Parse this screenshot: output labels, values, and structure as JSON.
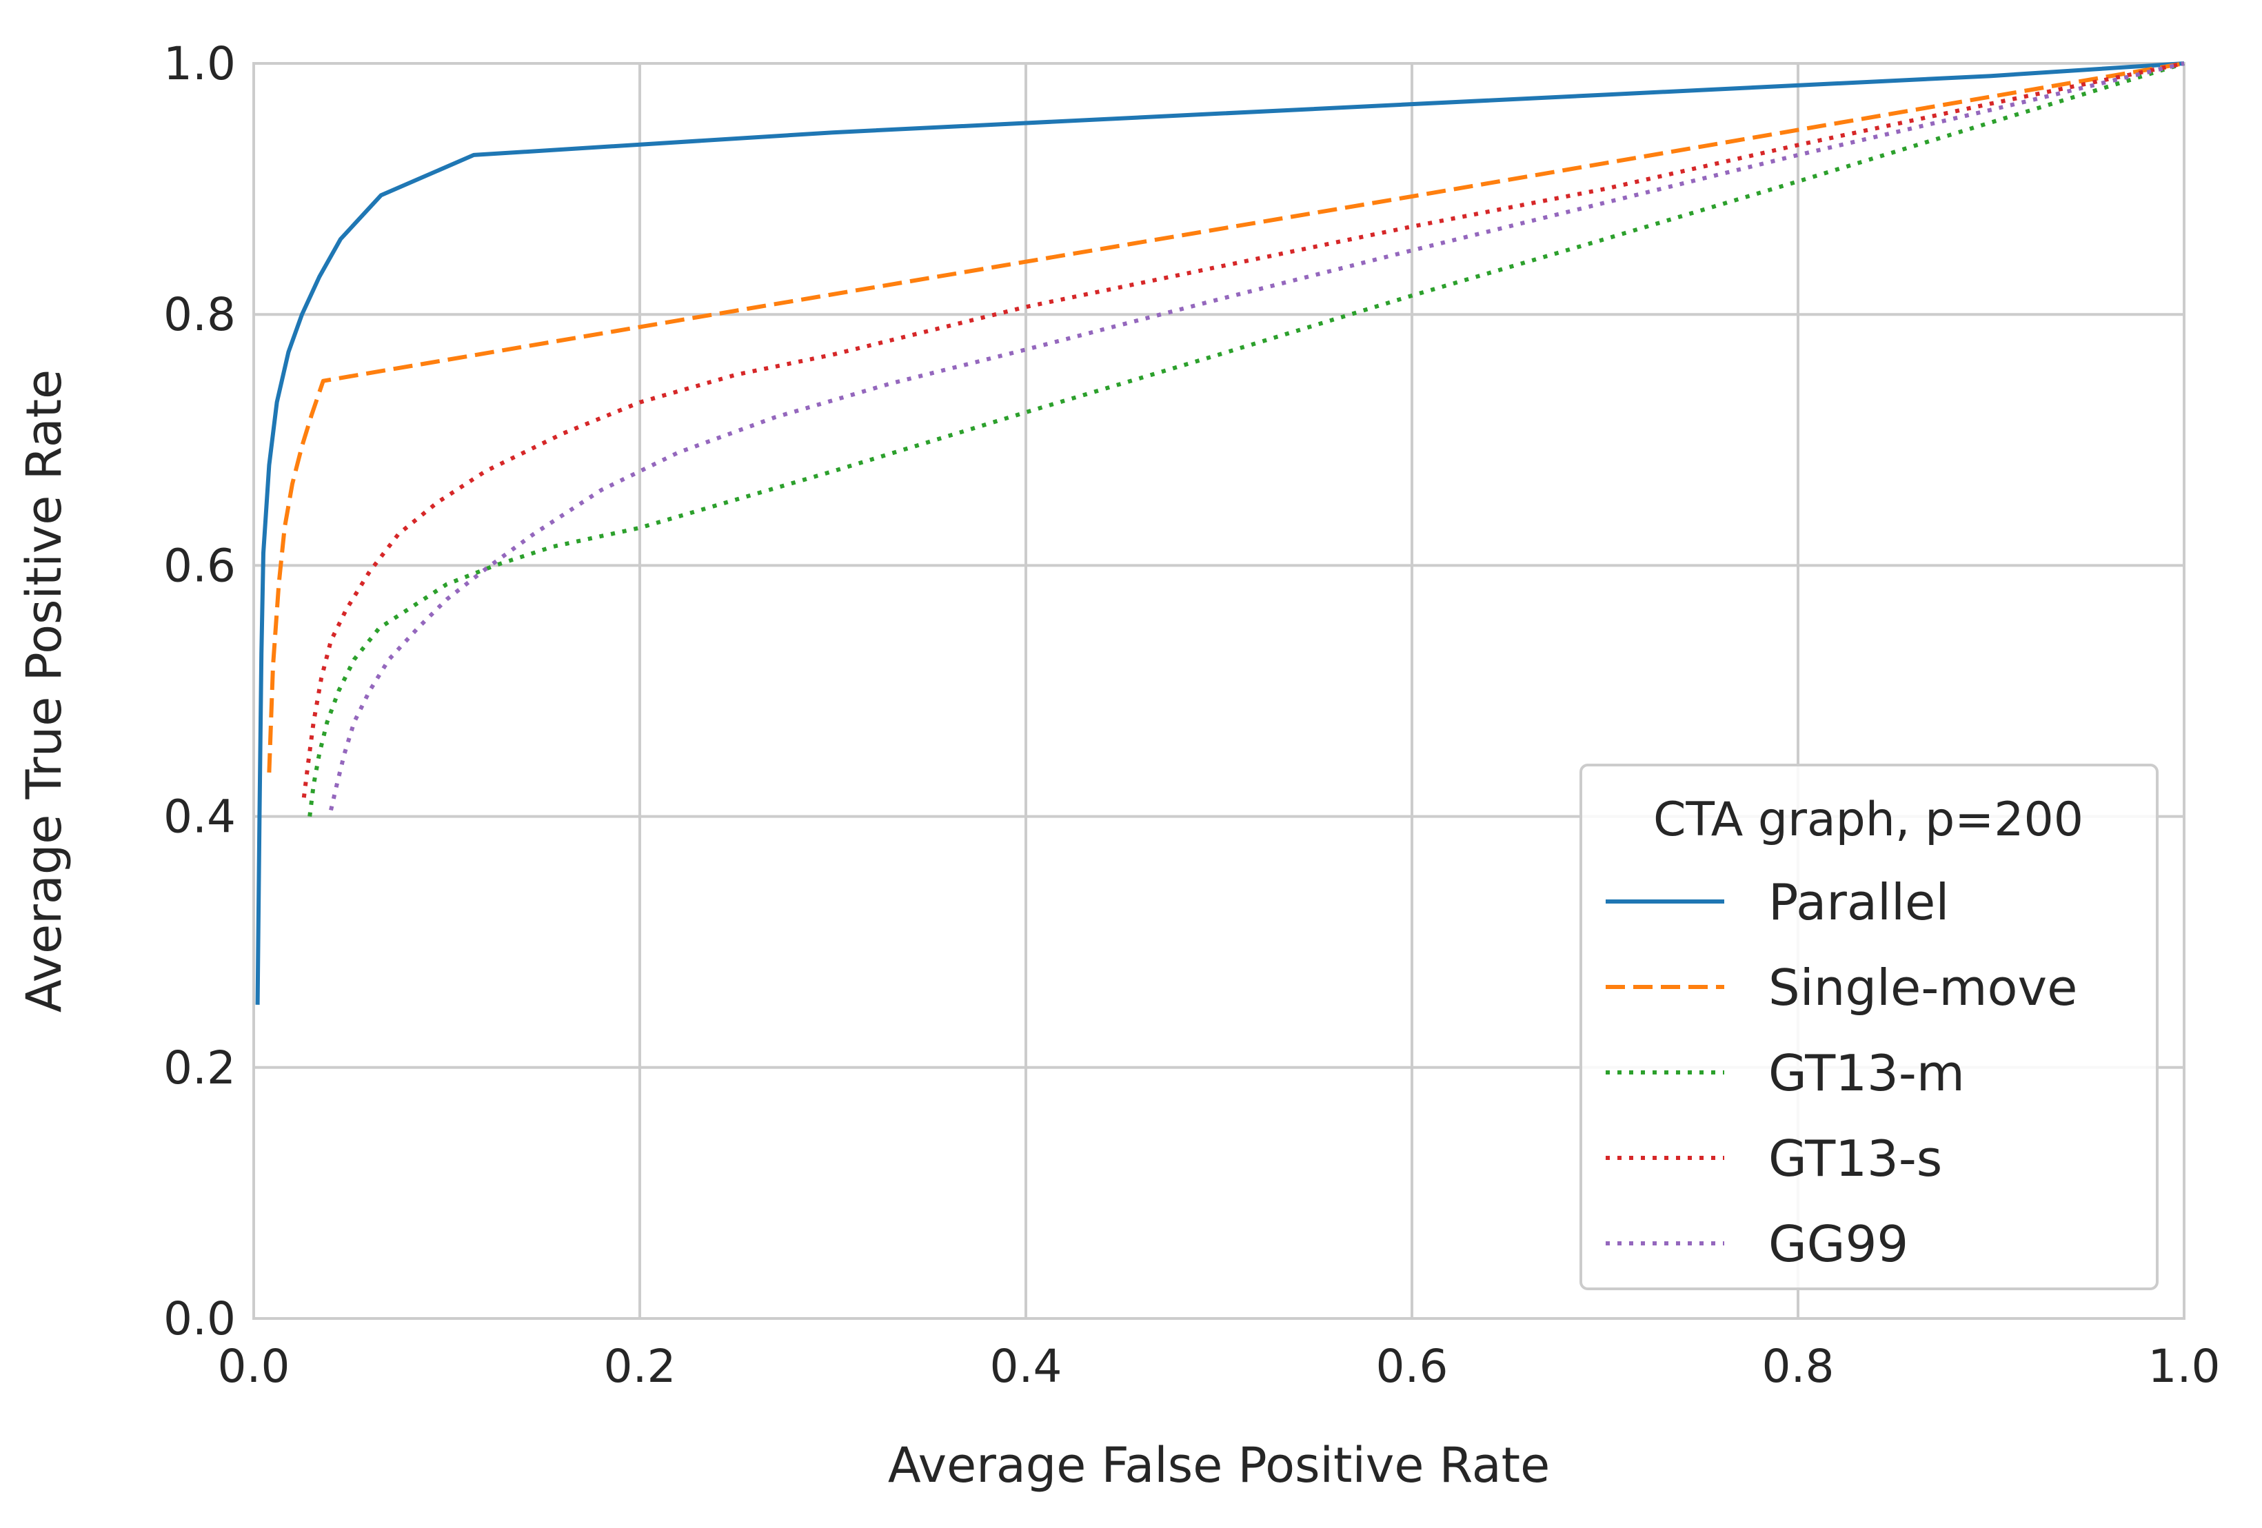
{
  "chart_data": {
    "type": "line",
    "title": "",
    "xlabel": "Average False Positive Rate",
    "ylabel": "Average True Positive Rate",
    "xlim": [
      0.0,
      1.0
    ],
    "ylim": [
      0.0,
      1.0
    ],
    "xticks": [
      "0.0",
      "0.2",
      "0.4",
      "0.6",
      "0.8",
      "1.0"
    ],
    "yticks": [
      "0.0",
      "0.2",
      "0.4",
      "0.6",
      "0.8",
      "1.0"
    ],
    "grid": true,
    "legend": {
      "title": "CTA graph, p=200",
      "position": "lower-right"
    },
    "series": [
      {
        "name": "Parallel",
        "color": "#1f77b4",
        "style": "solid",
        "x": [
          0.002,
          0.003,
          0.004,
          0.005,
          0.008,
          0.012,
          0.018,
          0.025,
          0.034,
          0.045,
          0.066,
          0.114,
          0.3,
          0.5,
          0.7,
          0.9,
          1.0
        ],
        "y": [
          0.25,
          0.4,
          0.53,
          0.61,
          0.68,
          0.73,
          0.77,
          0.8,
          0.83,
          0.86,
          0.895,
          0.927,
          0.945,
          0.96,
          0.975,
          0.99,
          1.0
        ]
      },
      {
        "name": "Single-move",
        "color": "#ff7f0e",
        "style": "dashed",
        "x": [
          0.008,
          0.01,
          0.013,
          0.016,
          0.02,
          0.025,
          0.03,
          0.036,
          0.2,
          0.4,
          0.6,
          0.8,
          1.0
        ],
        "y": [
          0.435,
          0.52,
          0.585,
          0.63,
          0.665,
          0.695,
          0.72,
          0.747,
          0.79,
          0.842,
          0.894,
          0.947,
          1.0
        ]
      },
      {
        "name": "GT13-m",
        "color": "#2ca02c",
        "style": "dotted",
        "x": [
          0.029,
          0.031,
          0.034,
          0.038,
          0.044,
          0.052,
          0.065,
          0.08,
          0.1,
          0.125,
          0.155,
          0.2,
          0.3,
          0.4,
          0.5,
          0.6,
          0.7,
          0.8,
          0.9,
          1.0
        ],
        "y": [
          0.4,
          0.425,
          0.45,
          0.475,
          0.5,
          0.525,
          0.55,
          0.565,
          0.585,
          0.6,
          0.615,
          0.63,
          0.675,
          0.722,
          0.768,
          0.815,
          0.86,
          0.906,
          0.953,
          1.0
        ]
      },
      {
        "name": "GT13-s",
        "color": "#d62728",
        "style": "dotted",
        "x": [
          0.026,
          0.028,
          0.031,
          0.035,
          0.04,
          0.048,
          0.06,
          0.075,
          0.095,
          0.12,
          0.16,
          0.2,
          0.25,
          0.3,
          0.4,
          0.5,
          0.6,
          0.7,
          0.8,
          0.9,
          1.0
        ],
        "y": [
          0.415,
          0.44,
          0.475,
          0.51,
          0.54,
          0.565,
          0.595,
          0.625,
          0.65,
          0.675,
          0.705,
          0.73,
          0.752,
          0.768,
          0.806,
          0.838,
          0.87,
          0.9,
          0.935,
          0.968,
          1.0
        ]
      },
      {
        "name": "GG99",
        "color": "#9467bd",
        "style": "dotted",
        "x": [
          0.04,
          0.043,
          0.047,
          0.052,
          0.06,
          0.07,
          0.085,
          0.1,
          0.12,
          0.145,
          0.18,
          0.22,
          0.27,
          0.33,
          0.4,
          0.5,
          0.6,
          0.7,
          0.8,
          0.9,
          1.0
        ],
        "y": [
          0.405,
          0.425,
          0.45,
          0.475,
          0.5,
          0.525,
          0.55,
          0.573,
          0.597,
          0.625,
          0.66,
          0.69,
          0.718,
          0.745,
          0.772,
          0.812,
          0.851,
          0.889,
          0.927,
          0.963,
          1.0
        ]
      }
    ]
  }
}
